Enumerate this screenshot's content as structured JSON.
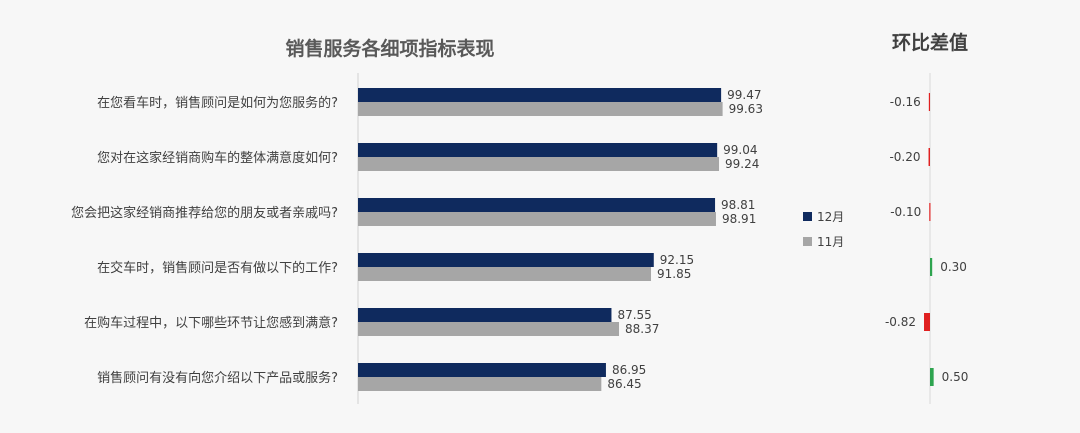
{
  "chart_data": [
    {
      "type": "bar",
      "orientation": "horizontal",
      "title": "销售服务各细项指标表现",
      "categories": [
        "在您看车时，销售顾问是如何为您服务的?",
        "您对在这家经销商购车的整体满意度如何?",
        "您会把这家经销商推荐给您的朋友或者亲戚吗?",
        "在交车时，销售顾问是否有做以下的工作?",
        "在购车过程中，以下哪些环节让您感到满意?",
        "销售顾问有没有向您介绍以下产品或服务?"
      ],
      "series": [
        {
          "name": "12月",
          "color": "#0f2a5e",
          "values": [
            99.47,
            99.04,
            98.81,
            92.15,
            87.55,
            86.95
          ]
        },
        {
          "name": "11月",
          "color": "#a6a6a6",
          "values": [
            99.63,
            99.24,
            98.91,
            91.85,
            88.37,
            86.45
          ]
        }
      ],
      "value_labels": {
        "12月": [
          "99.47",
          "99.04",
          "98.81",
          "92.15",
          "87.55",
          "86.95"
        ],
        "11月": [
          "99.63",
          "99.24",
          "98.91",
          "91.85",
          "88.37",
          "86.45"
        ]
      },
      "xlim": [
        60,
        100
      ],
      "grid": false,
      "legend_position": "right"
    },
    {
      "type": "bar",
      "orientation": "horizontal",
      "title": "环比差值",
      "categories": [
        "在您看车时，销售顾问是如何为您服务的?",
        "您对在这家经销商购车的整体满意度如何?",
        "您会把这家经销商推荐给您的朋友或者亲戚吗?",
        "在交车时，销售顾问是否有做以下的工作?",
        "在购车过程中，以下哪些环节让您感到满意?",
        "销售顾问有没有向您介绍以下产品或服务?"
      ],
      "values": [
        -0.16,
        -0.2,
        -0.1,
        0.3,
        -0.82,
        0.5
      ],
      "labels": [
        "-0.16",
        "-0.20",
        "-0.10",
        "0.30",
        "-0.82",
        "0.50"
      ],
      "positive_color": "#2ea44f",
      "negative_color": "#e02020",
      "xlim": [
        -1,
        1
      ]
    }
  ]
}
